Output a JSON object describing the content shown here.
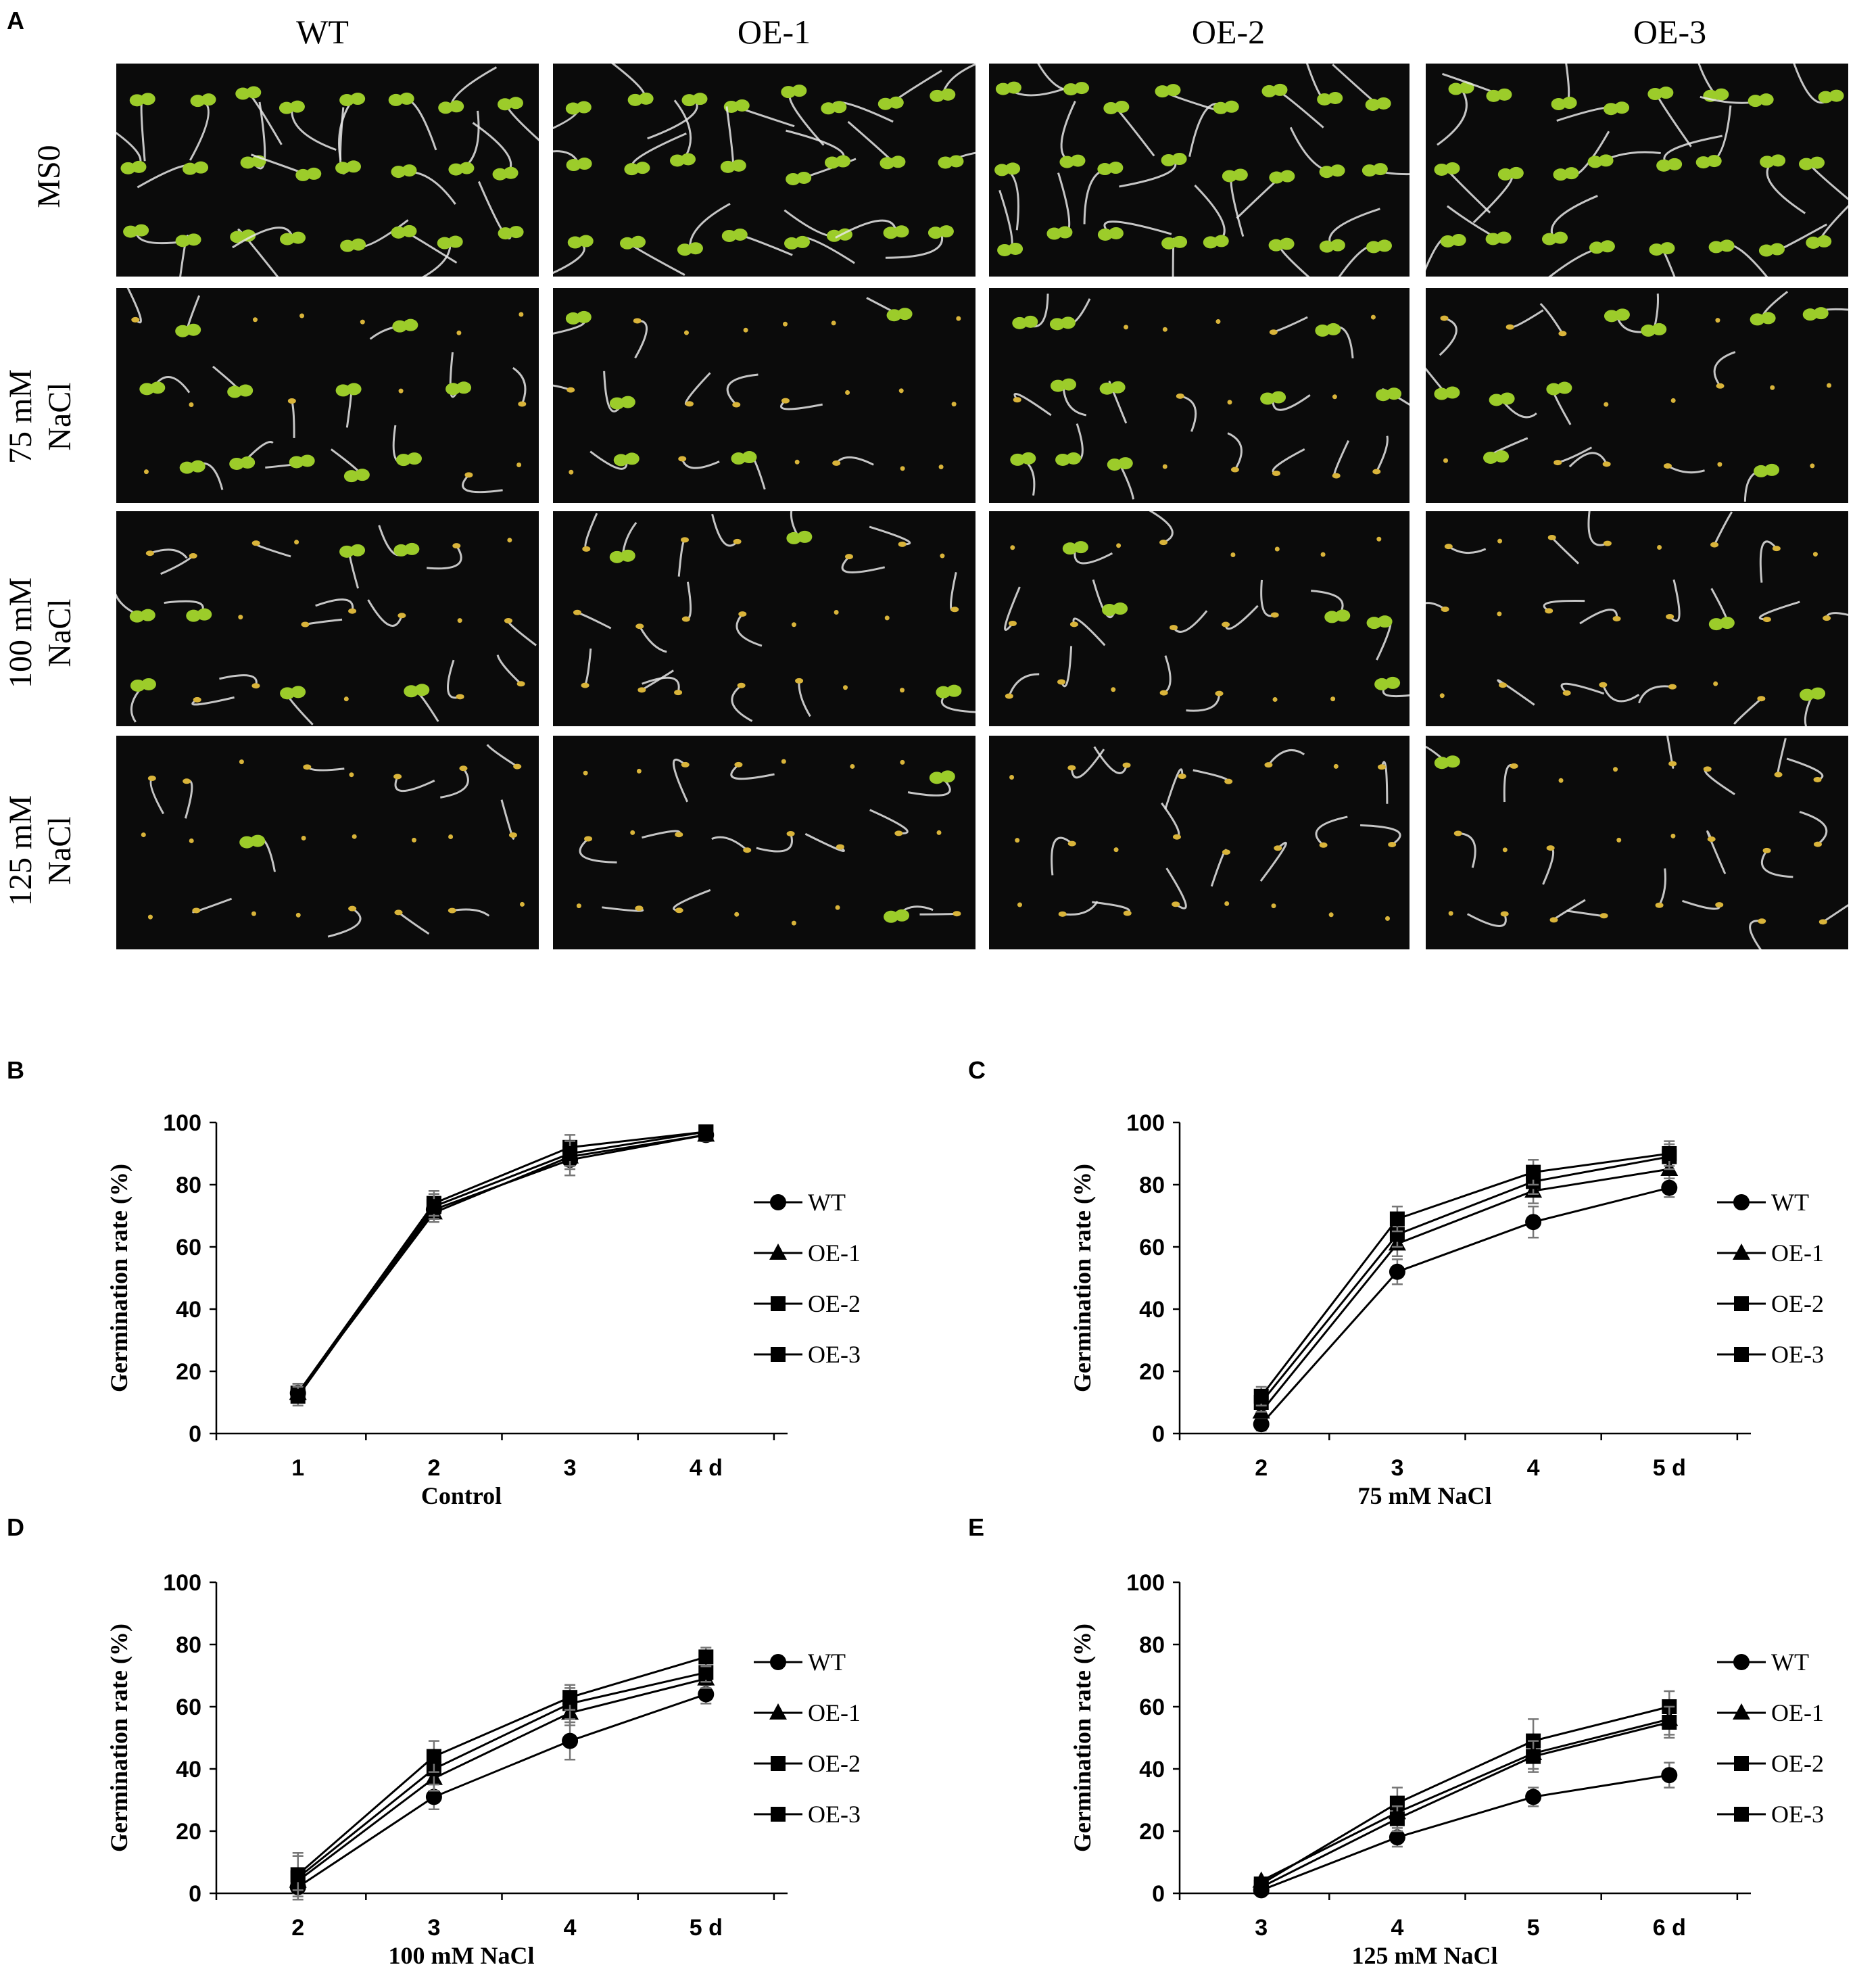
{
  "figure": {
    "panel_a": {
      "letter": "A",
      "columns": [
        "WT",
        "OE-1",
        "OE-2",
        "OE-3"
      ],
      "rows": [
        {
          "line1": "MS0",
          "line2": ""
        },
        {
          "line1": "75 mM",
          "line2": "NaCl"
        },
        {
          "line1": "100 mM",
          "line2": "NaCl"
        },
        {
          "line1": "125 mM",
          "line2": "NaCl"
        }
      ],
      "seedling_green_fraction": [
        1.0,
        0.5,
        0.25,
        0.1
      ]
    },
    "colors": {
      "background": "#ffffff",
      "plate": "#0b0b0b",
      "seedling": "#9ccc2a",
      "seed": "#d9b43a",
      "root": "#e8e8e8",
      "ink": "#000000",
      "errorbar": "#777777"
    }
  },
  "chart_data": [
    {
      "panel": "B",
      "type": "line",
      "categories": [
        "1",
        "2",
        "3",
        "4 d"
      ],
      "xlabel": "Control",
      "ylabel": "Germination  rate (%)",
      "ylim": [
        0,
        100
      ],
      "yticks": [
        0,
        20,
        40,
        60,
        80,
        100
      ],
      "grid": false,
      "legend_position": "right",
      "series": [
        {
          "name": "WT",
          "marker": "circle",
          "values": [
            13,
            72,
            88,
            96
          ],
          "errors": [
            3,
            3,
            5,
            2
          ]
        },
        {
          "name": "OE-1",
          "marker": "triangle",
          "values": [
            13,
            71,
            89,
            96
          ],
          "errors": [
            3,
            3,
            4,
            2
          ]
        },
        {
          "name": "OE-2",
          "marker": "square",
          "values": [
            13,
            74,
            92,
            97
          ],
          "errors": [
            3,
            4,
            4,
            2
          ]
        },
        {
          "name": "OE-3",
          "marker": "square",
          "values": [
            12,
            73,
            90,
            97
          ],
          "errors": [
            3,
            4,
            4,
            2
          ]
        }
      ]
    },
    {
      "panel": "C",
      "type": "line",
      "categories": [
        "2",
        "3",
        "4",
        "5 d"
      ],
      "xlabel": "75 mM NaCl",
      "ylabel": "Germination  rate (%)",
      "ylim": [
        0,
        100
      ],
      "yticks": [
        0,
        20,
        40,
        60,
        80,
        100
      ],
      "grid": false,
      "legend_position": "right",
      "series": [
        {
          "name": "WT",
          "marker": "circle",
          "values": [
            3,
            52,
            68,
            79
          ],
          "errors": [
            2,
            4,
            5,
            3
          ]
        },
        {
          "name": "OE-1",
          "marker": "triangle",
          "values": [
            7,
            61,
            78,
            85
          ],
          "errors": [
            2,
            4,
            4,
            3
          ]
        },
        {
          "name": "OE-2",
          "marker": "square",
          "values": [
            10,
            64,
            81,
            89
          ],
          "errors": [
            3,
            4,
            4,
            4
          ]
        },
        {
          "name": "OE-3",
          "marker": "square",
          "values": [
            12,
            69,
            84,
            90
          ],
          "errors": [
            3,
            4,
            4,
            4
          ]
        }
      ]
    },
    {
      "panel": "D",
      "type": "line",
      "categories": [
        "2",
        "3",
        "4",
        "5 d"
      ],
      "xlabel": "100 mM NaCl",
      "ylabel": "Germination  rate (%)",
      "ylim": [
        0,
        100
      ],
      "yticks": [
        0,
        20,
        40,
        60,
        80,
        100
      ],
      "grid": false,
      "legend_position": "right",
      "series": [
        {
          "name": "WT",
          "marker": "circle",
          "values": [
            2,
            31,
            49,
            64
          ],
          "errors": [
            2,
            4,
            6,
            3
          ]
        },
        {
          "name": "OE-1",
          "marker": "triangle",
          "values": [
            4,
            37,
            58,
            69
          ],
          "errors": [
            3,
            4,
            4,
            3
          ]
        },
        {
          "name": "OE-2",
          "marker": "square",
          "values": [
            5,
            40,
            61,
            71
          ],
          "errors": [
            7,
            5,
            5,
            3
          ]
        },
        {
          "name": "OE-3",
          "marker": "square",
          "values": [
            6,
            44,
            63,
            76
          ],
          "errors": [
            7,
            5,
            4,
            3
          ]
        }
      ]
    },
    {
      "panel": "E",
      "type": "line",
      "categories": [
        "3",
        "4",
        "5",
        "6 d"
      ],
      "xlabel": "125 mM NaCl",
      "ylabel": "Germination  rate (%)",
      "ylim": [
        0,
        100
      ],
      "yticks": [
        0,
        20,
        40,
        60,
        80,
        100
      ],
      "grid": false,
      "legend_position": "right",
      "series": [
        {
          "name": "WT",
          "marker": "circle",
          "values": [
            1,
            18,
            31,
            38
          ],
          "errors": [
            1,
            3,
            3,
            4
          ]
        },
        {
          "name": "OE-1",
          "marker": "triangle",
          "values": [
            4,
            26,
            45,
            56
          ],
          "errors": [
            1,
            4,
            5,
            5
          ]
        },
        {
          "name": "OE-2",
          "marker": "square",
          "values": [
            3,
            29,
            49,
            60
          ],
          "errors": [
            1,
            5,
            7,
            5
          ]
        },
        {
          "name": "OE-3",
          "marker": "square",
          "values": [
            2,
            24,
            44,
            55
          ],
          "errors": [
            1,
            4,
            5,
            5
          ]
        }
      ]
    }
  ]
}
